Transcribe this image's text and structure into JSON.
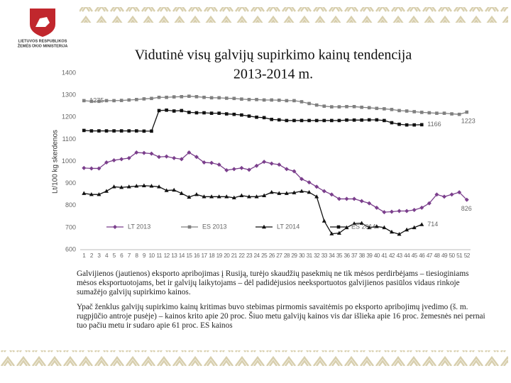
{
  "header": {
    "org": [
      "LIETUVOS RESPUBLIKOS",
      "ŽEMĖS ŪKIO MINISTERIJA"
    ]
  },
  "chart_data": {
    "type": "line",
    "title": [
      "Vidutinė visų galvijų supirkimo kainų tendencija",
      "2013-2014 m."
    ],
    "ylabel": "Lt/100 kg skerdenos",
    "categories": [
      1,
      2,
      3,
      4,
      5,
      6,
      7,
      8,
      9,
      10,
      11,
      12,
      13,
      14,
      15,
      16,
      17,
      18,
      19,
      20,
      21,
      22,
      23,
      24,
      25,
      26,
      27,
      28,
      29,
      30,
      31,
      32,
      33,
      34,
      35,
      36,
      37,
      38,
      39,
      40,
      41,
      42,
      43,
      44,
      45,
      46,
      47,
      48,
      49,
      50,
      51,
      52
    ],
    "ylim": [
      600,
      1400
    ],
    "yticks": [
      600,
      700,
      800,
      900,
      1000,
      1100,
      1200,
      1300,
      1400
    ],
    "grid": false,
    "legend": "bottom",
    "series": [
      {
        "name": "LT 2013",
        "color": "#7b3f8c",
        "marker": "diamond",
        "values": [
          970,
          968,
          968,
          995,
          1005,
          1010,
          1015,
          1040,
          1038,
          1035,
          1020,
          1022,
          1015,
          1010,
          1040,
          1020,
          995,
          993,
          985,
          960,
          965,
          970,
          962,
          980,
          998,
          990,
          985,
          965,
          955,
          920,
          905,
          885,
          865,
          850,
          830,
          830,
          830,
          820,
          810,
          790,
          770,
          772,
          775,
          775,
          780,
          790,
          810,
          850,
          840,
          850,
          860,
          826
        ],
        "value_labels": [
          null,
          null,
          null,
          null,
          null,
          null,
          null,
          null,
          null,
          null,
          null,
          null,
          null,
          null,
          null,
          null,
          null,
          null,
          null,
          null,
          null,
          null,
          null,
          null,
          null,
          null,
          null,
          null,
          null,
          null,
          null,
          null,
          null,
          null,
          null,
          null,
          null,
          null,
          null,
          null,
          null,
          null,
          null,
          null,
          null,
          null,
          null,
          null,
          null,
          null,
          null,
          "826"
        ]
      },
      {
        "name": "ES 2013",
        "color": "#808080",
        "marker": "square",
        "values": [
          1275,
          1272,
          1272,
          1275,
          1275,
          1276,
          1278,
          1280,
          1283,
          1285,
          1290,
          1290,
          1292,
          1293,
          1295,
          1293,
          1290,
          1288,
          1288,
          1286,
          1285,
          1282,
          1280,
          1280,
          1278,
          1278,
          1277,
          1275,
          1275,
          1270,
          1262,
          1255,
          1250,
          1247,
          1247,
          1248,
          1248,
          1245,
          1243,
          1240,
          1238,
          1235,
          1230,
          1228,
          1225,
          1222,
          1220,
          1218,
          1218,
          1215,
          1213,
          1223
        ],
        "value_labels": [
          "1275",
          null,
          null,
          null,
          null,
          null,
          null,
          null,
          null,
          null,
          null,
          null,
          null,
          null,
          null,
          null,
          null,
          null,
          null,
          null,
          null,
          null,
          null,
          null,
          null,
          null,
          null,
          null,
          null,
          null,
          null,
          null,
          null,
          null,
          null,
          null,
          null,
          null,
          null,
          null,
          null,
          null,
          null,
          null,
          null,
          null,
          null,
          null,
          null,
          null,
          null,
          "1223"
        ]
      },
      {
        "name": "LT 2014",
        "color": "#111111",
        "marker": "triangle",
        "values": [
          855,
          850,
          850,
          865,
          885,
          882,
          885,
          888,
          890,
          888,
          885,
          868,
          870,
          855,
          838,
          850,
          840,
          840,
          840,
          840,
          835,
          845,
          840,
          840,
          845,
          860,
          855,
          855,
          858,
          865,
          860,
          840,
          730,
          672,
          675,
          700,
          718,
          720,
          700,
          705,
          700,
          680,
          670,
          690,
          700,
          714,
          null,
          null,
          null,
          null,
          null,
          null
        ],
        "value_labels": [
          null,
          null,
          null,
          null,
          null,
          null,
          null,
          null,
          null,
          null,
          null,
          null,
          null,
          null,
          null,
          null,
          null,
          null,
          null,
          null,
          null,
          null,
          null,
          null,
          null,
          null,
          null,
          null,
          null,
          null,
          null,
          null,
          null,
          null,
          null,
          null,
          null,
          null,
          null,
          null,
          null,
          null,
          null,
          null,
          null,
          "714",
          null,
          null,
          null,
          null,
          null,
          null
        ]
      },
      {
        "name": "ES 2014",
        "color": "#111111",
        "marker": "square",
        "values": [
          1140,
          1138,
          1138,
          1138,
          1138,
          1138,
          1138,
          1138,
          1137,
          1137,
          1230,
          1232,
          1228,
          1230,
          1222,
          1220,
          1220,
          1218,
          1218,
          1215,
          1213,
          1210,
          1205,
          1200,
          1198,
          1190,
          1188,
          1185,
          1185,
          1185,
          1185,
          1185,
          1185,
          1185,
          1185,
          1187,
          1187,
          1187,
          1188,
          1188,
          1185,
          1175,
          1168,
          1165,
          1165,
          1166,
          null,
          null,
          null,
          null,
          null,
          null
        ],
        "value_labels": [
          null,
          null,
          null,
          null,
          null,
          null,
          null,
          null,
          null,
          null,
          null,
          null,
          null,
          null,
          null,
          null,
          null,
          null,
          null,
          null,
          null,
          null,
          null,
          null,
          null,
          null,
          null,
          null,
          null,
          null,
          null,
          null,
          null,
          null,
          null,
          null,
          null,
          null,
          null,
          null,
          null,
          null,
          null,
          null,
          null,
          "1166",
          null,
          null,
          null,
          null,
          null,
          null
        ]
      }
    ]
  },
  "paragraphs": [
    "Galvijienos (jautienos) eksporto apribojimas į Rusiją, turėjo skaudžių pasekmių ne tik mėsos perdirbėjams – tiesioginiams mėsos eksportuotojams, bet ir galvijų laikytojams – dėl padidėjusios neeksportuotos galvijienos pasiūlos vidaus rinkoje sumažėjo galvijų supirkimo kainos.",
    "Ypač ženklus galvijų supirkimo kainų kritimas buvo stebimas pirmomis savaitėmis po eksporto apribojimų įvedimo (š. m. rugpjūčio antroje pusėje) – kainos krito apie 20 proc. Šiuo metu galvijų kainos vis dar išlieka apie 16 proc. žemesnės nei pernai tuo pačiu metu ir sudaro apie 61 proc. ES kainos"
  ]
}
